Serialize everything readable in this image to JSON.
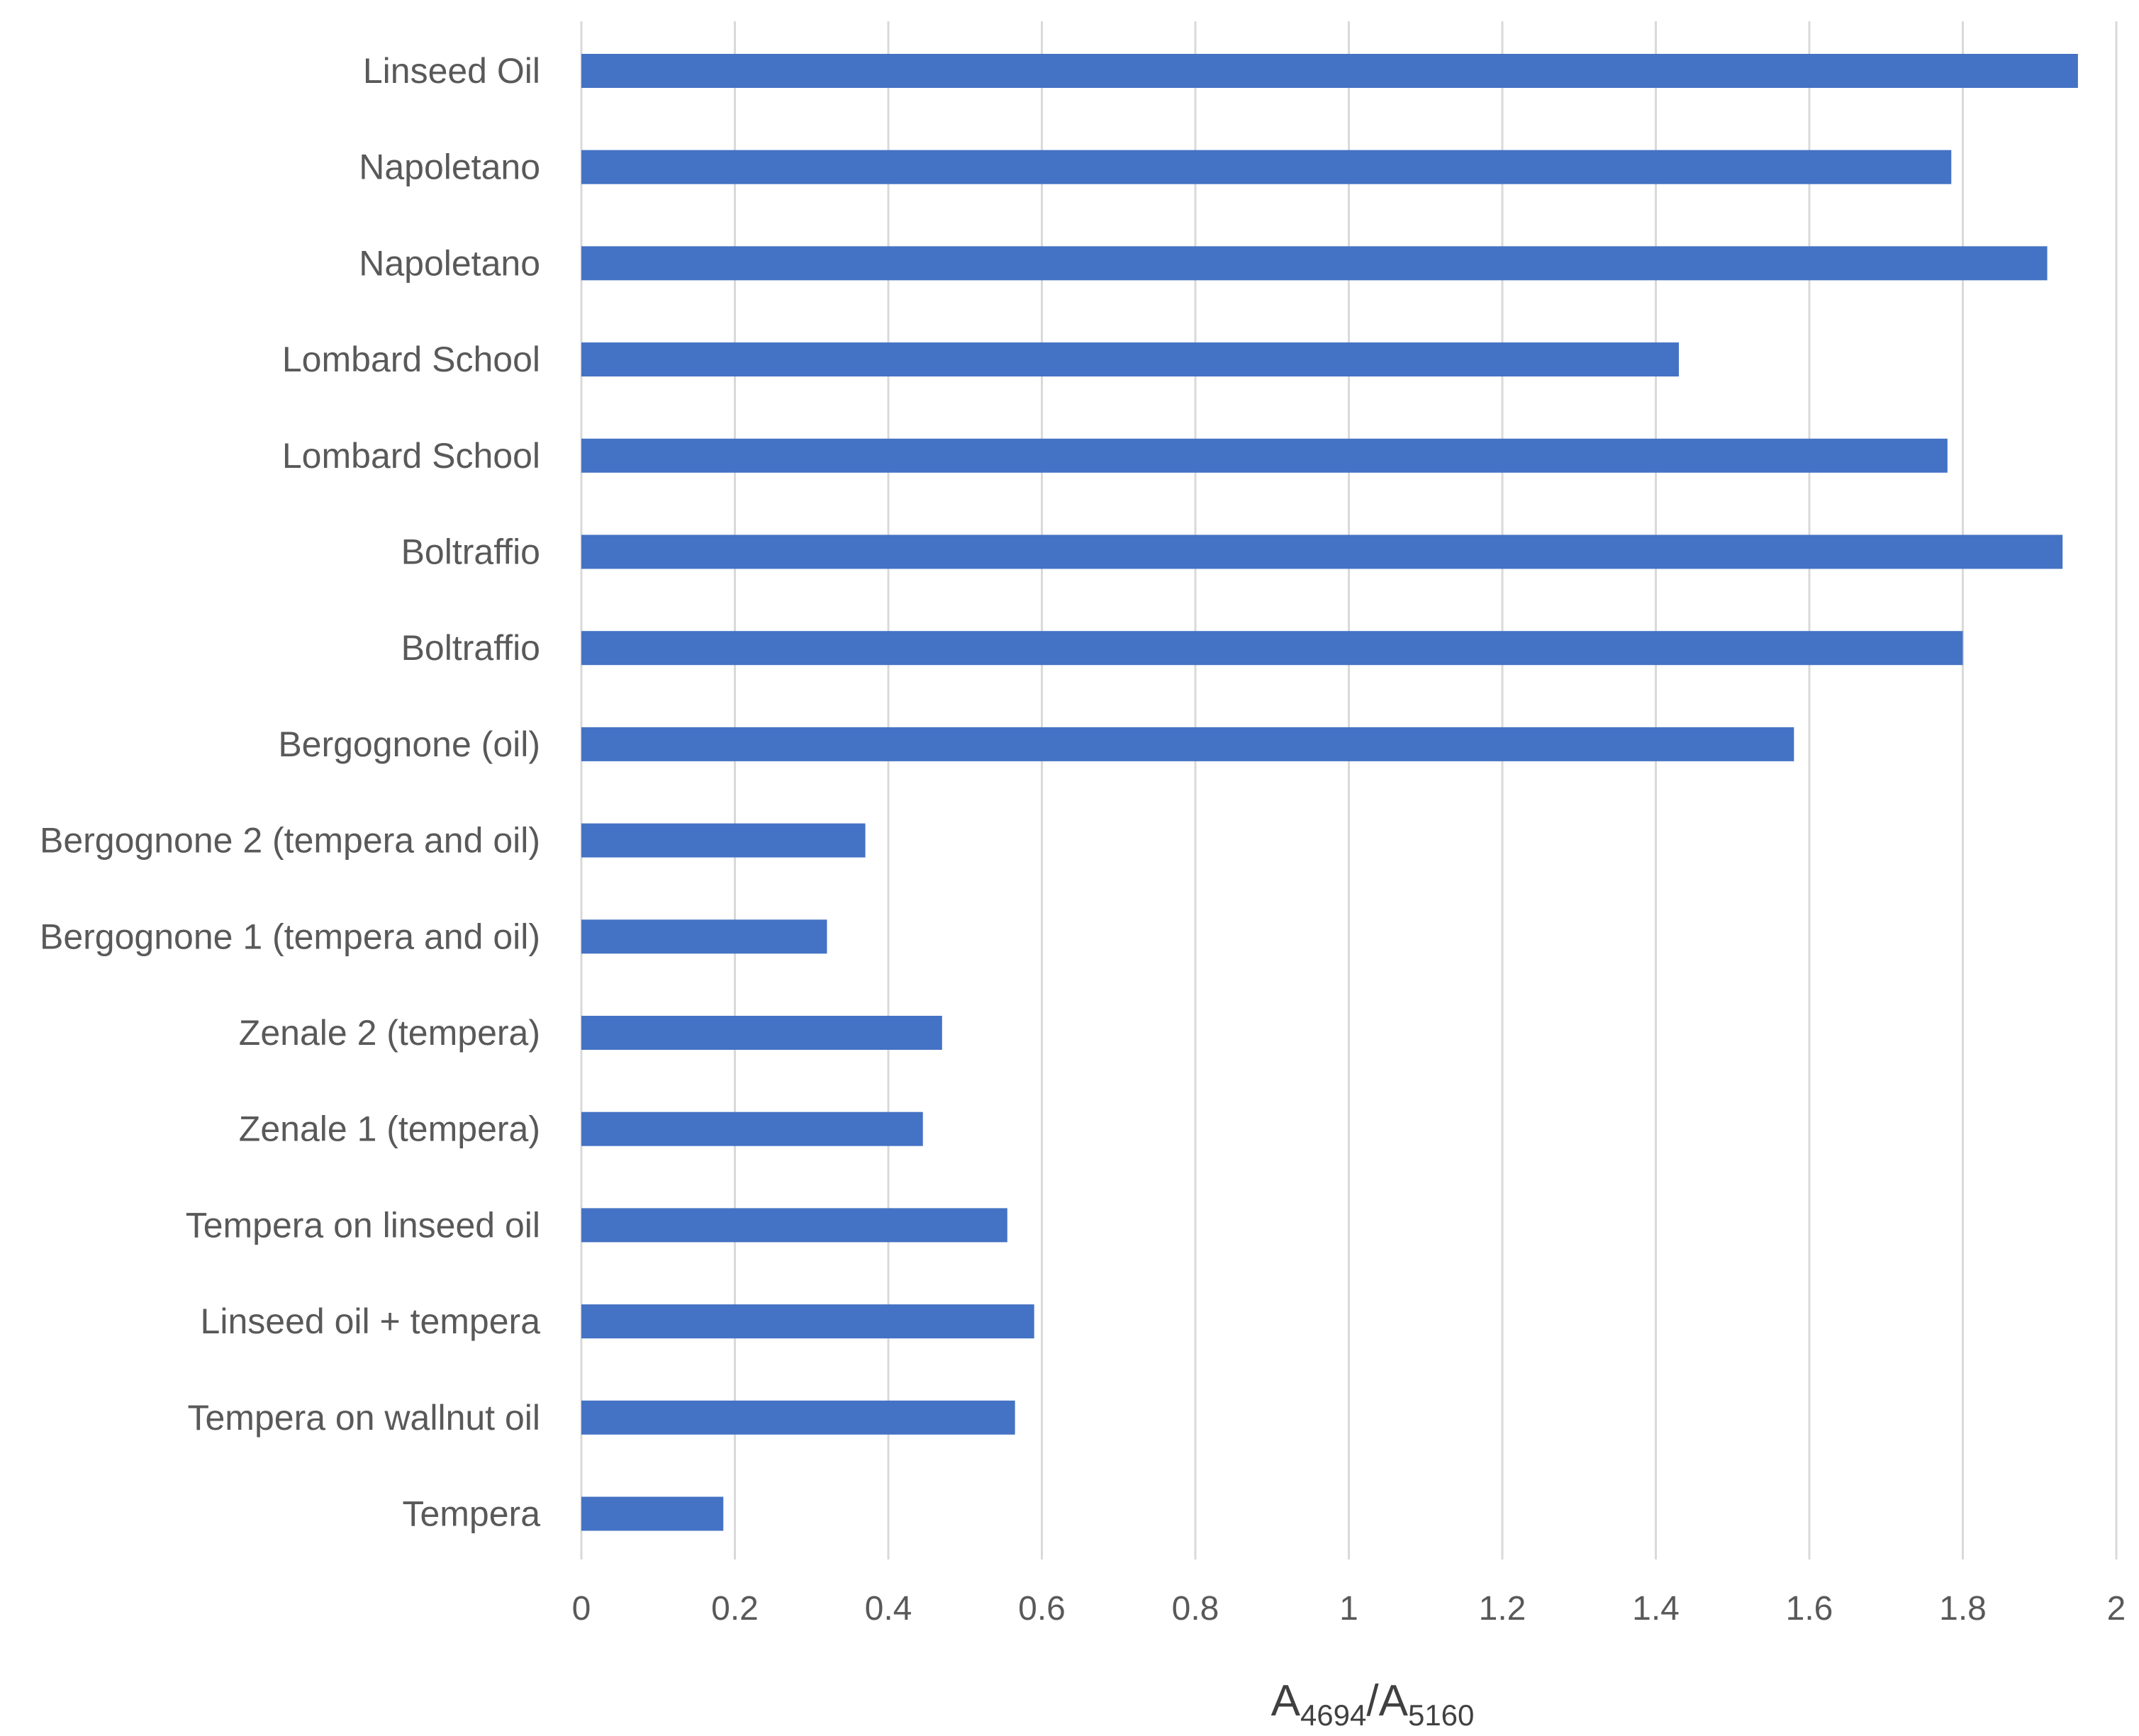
{
  "chart_data": {
    "type": "bar",
    "orientation": "horizontal",
    "title": "",
    "categories": [
      "Linseed Oil",
      "Napoletano",
      "Napoletano",
      "Lombard School",
      "Lombard School",
      "Boltraffio",
      "Boltraffio",
      "Bergognone (oil)",
      "Bergognone 2 (tempera and oil)",
      "Bergognone 1 (tempera and oil)",
      "Zenale 2 (tempera)",
      "Zenale 1 (tempera)",
      "Tempera on linseed oil",
      "Linseed oil + tempera",
      "Tempera on wallnut oil",
      "Tempera"
    ],
    "values": [
      1.95,
      1.785,
      1.91,
      1.43,
      1.78,
      1.93,
      1.8,
      1.58,
      0.37,
      0.32,
      0.47,
      0.445,
      0.555,
      0.59,
      0.565,
      0.185
    ],
    "xlim": [
      0,
      2
    ],
    "xticks": [
      "0",
      "0.2",
      "0.4",
      "0.6",
      "0.8",
      "1",
      "1.2",
      "1.4",
      "1.6",
      "1.8",
      "2"
    ],
    "xlabel": {
      "main1": "A",
      "sub1": "4694",
      "sep": "/A",
      "sub2": "5160"
    },
    "ylabel": "",
    "grid": true,
    "bar_color": "#4472c4",
    "grid_color": "#d9d9d9",
    "text_color": "#595959"
  }
}
